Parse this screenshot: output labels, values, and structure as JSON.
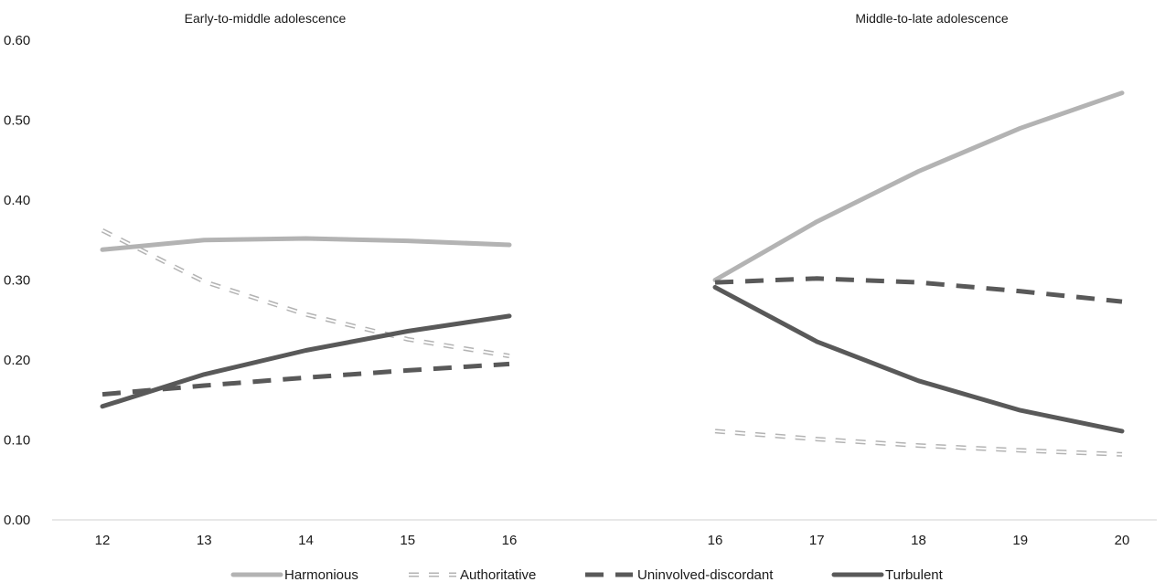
{
  "chart_data": {
    "type": "line",
    "y_ticks": [
      "0.00",
      "0.10",
      "0.20",
      "0.30",
      "0.40",
      "0.50",
      "0.60"
    ],
    "ylim": [
      0,
      0.6
    ],
    "grid": false,
    "legend_position": "bottom",
    "panels": [
      {
        "title": "Early-to-middle adolescence",
        "x": [
          12,
          13,
          14,
          15,
          16
        ],
        "x_labels": [
          "12",
          "13",
          "14",
          "15",
          "16"
        ]
      },
      {
        "title": "Middle-to-late adolescence",
        "x": [
          16,
          17,
          18,
          19,
          20
        ],
        "x_labels": [
          "16",
          "17",
          "18",
          "19",
          "20"
        ]
      }
    ],
    "series": [
      {
        "name": "Harmonious",
        "color": "#b3b3b3",
        "style": "solid-thick",
        "values": [
          [
            0.338,
            0.35,
            0.352,
            0.349,
            0.344
          ],
          [
            0.3,
            0.373,
            0.436,
            0.49,
            0.534
          ]
        ]
      },
      {
        "name": "Authoritative",
        "color": "#b3b3b3",
        "style": "double-dash",
        "values": [
          [
            0.362,
            0.298,
            0.257,
            0.226,
            0.205
          ],
          [
            0.111,
            0.101,
            0.093,
            0.087,
            0.082
          ]
        ]
      },
      {
        "name": "Uninvolved-discordant",
        "color": "#595959",
        "style": "dashed-thick",
        "values": [
          [
            0.157,
            0.168,
            0.178,
            0.187,
            0.195
          ],
          [
            0.297,
            0.302,
            0.297,
            0.286,
            0.273
          ]
        ]
      },
      {
        "name": "Turbulent",
        "color": "#595959",
        "style": "solid-thick",
        "values": [
          [
            0.142,
            0.182,
            0.212,
            0.236,
            0.255
          ],
          [
            0.291,
            0.223,
            0.174,
            0.137,
            0.111
          ]
        ]
      }
    ]
  }
}
